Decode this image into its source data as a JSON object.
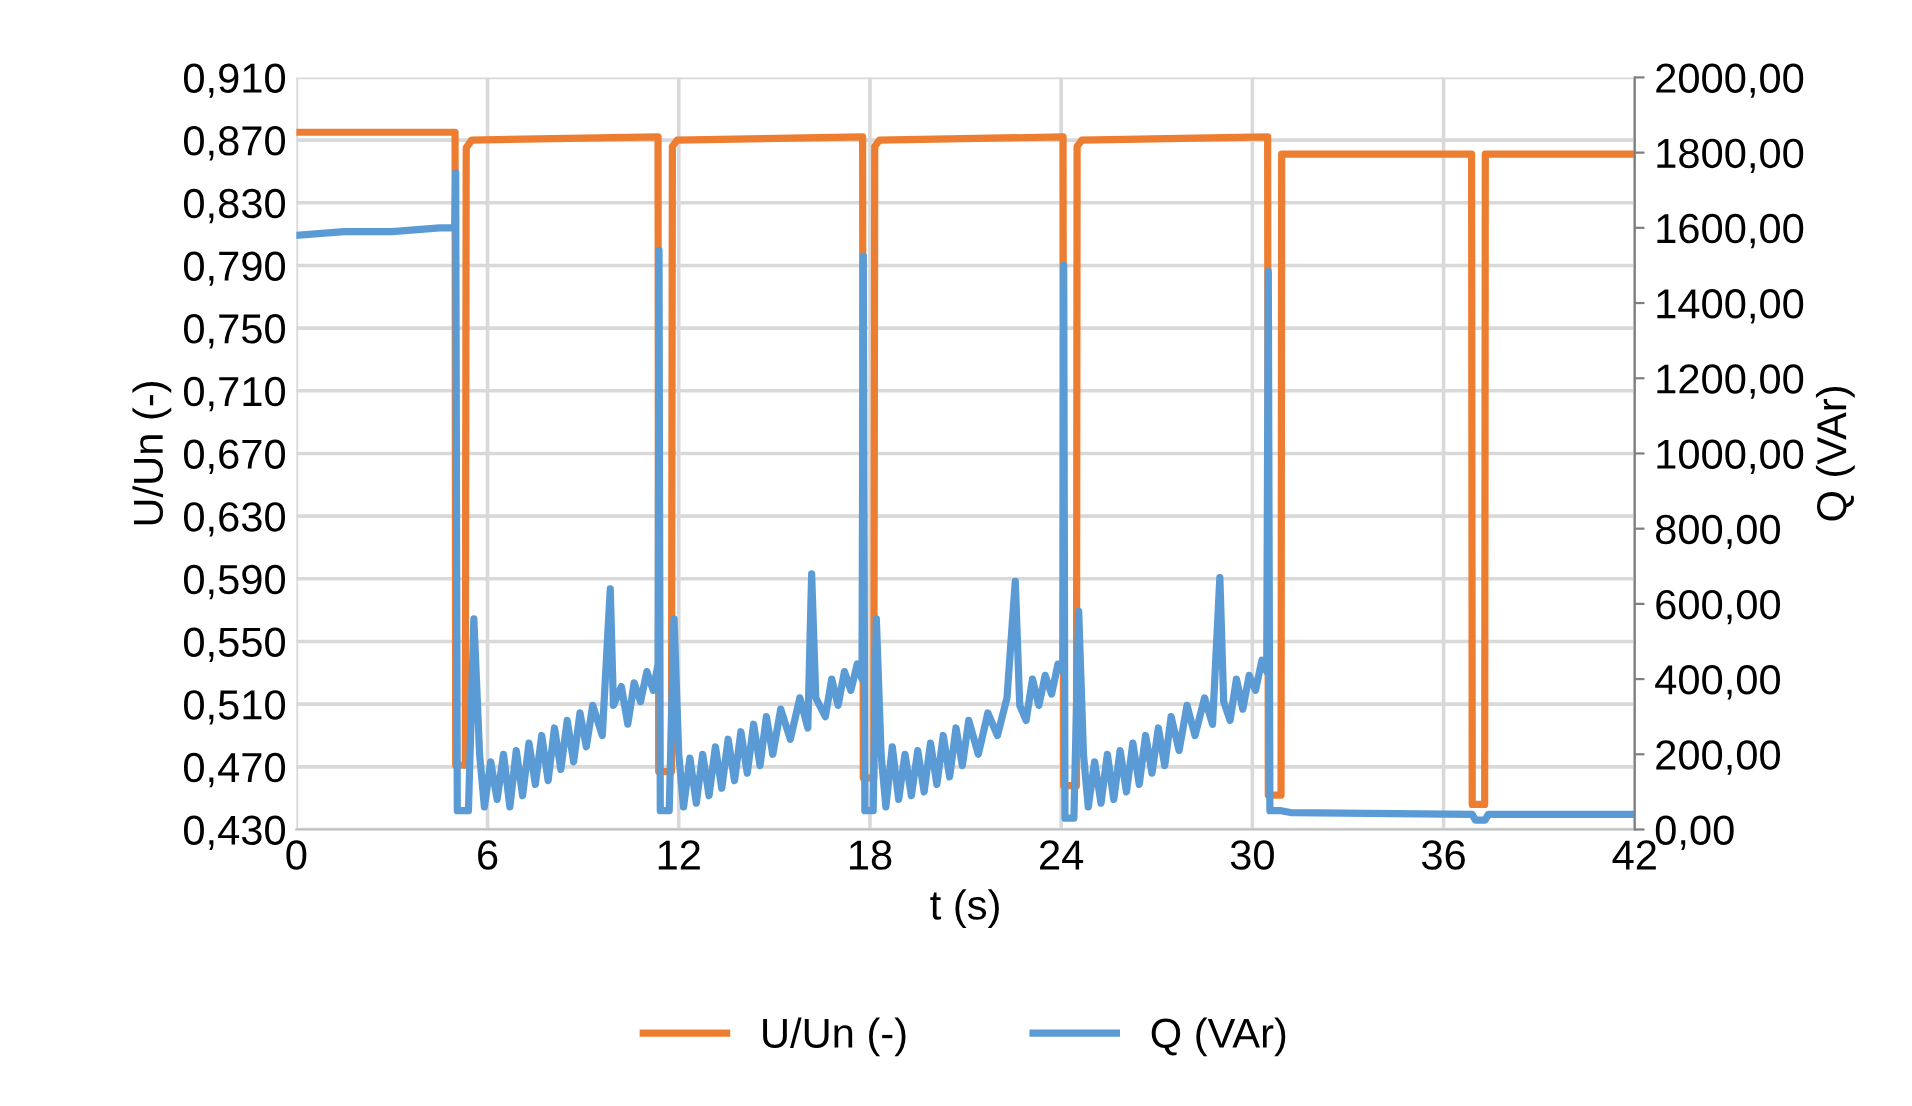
{
  "chart_data": {
    "type": "line",
    "xlabel": "t (s)",
    "ylabel": "U/Un (-)",
    "y2label": "Q (VAr)",
    "xlim": [
      0,
      42
    ],
    "xticks": [
      0,
      6,
      12,
      18,
      24,
      30,
      36,
      42
    ],
    "ylim": [
      0.43,
      0.91
    ],
    "yticks": [
      {
        "value": 0.43,
        "label": "0,430"
      },
      {
        "value": 0.47,
        "label": "0,470"
      },
      {
        "value": 0.51,
        "label": "0,510"
      },
      {
        "value": 0.55,
        "label": "0,550"
      },
      {
        "value": 0.59,
        "label": "0,590"
      },
      {
        "value": 0.63,
        "label": "0,630"
      },
      {
        "value": 0.67,
        "label": "0,670"
      },
      {
        "value": 0.71,
        "label": "0,710"
      },
      {
        "value": 0.75,
        "label": "0,750"
      },
      {
        "value": 0.79,
        "label": "0,790"
      },
      {
        "value": 0.83,
        "label": "0,830"
      },
      {
        "value": 0.87,
        "label": "0,870"
      },
      {
        "value": 0.91,
        "label": "0,910"
      }
    ],
    "y2lim": [
      0,
      2000
    ],
    "y2ticks": [
      {
        "value": 0,
        "label": "0,00"
      },
      {
        "value": 200,
        "label": "200,00"
      },
      {
        "value": 400,
        "label": "400,00"
      },
      {
        "value": 600,
        "label": "600,00"
      },
      {
        "value": 800,
        "label": "800,00"
      },
      {
        "value": 1000,
        "label": "1000,00"
      },
      {
        "value": 1200,
        "label": "1200,00"
      },
      {
        "value": 1400,
        "label": "1400,00"
      },
      {
        "value": 1600,
        "label": "1600,00"
      },
      {
        "value": 1800,
        "label": "1800,00"
      },
      {
        "value": 2000,
        "label": "2000,00"
      }
    ],
    "grid": true,
    "legend": "bottom",
    "marker": "none",
    "line_style": "solid",
    "series": [
      {
        "name": "U/Un (-)",
        "color": "#ed7d31",
        "x": [
          0,
          4.98,
          5.0,
          5.3,
          5.33,
          5.5,
          11.35,
          11.37,
          11.77,
          11.8,
          11.95,
          17.77,
          17.79,
          18.12,
          18.15,
          18.3,
          24.06,
          24.08,
          24.48,
          24.5,
          24.65,
          30.48,
          30.5,
          30.9,
          30.92,
          36.88,
          36.9,
          37.29,
          37.31,
          42
        ],
        "values": [
          0.875,
          0.875,
          0.471,
          0.471,
          0.865,
          0.87,
          0.872,
          0.467,
          0.467,
          0.866,
          0.87,
          0.872,
          0.463,
          0.463,
          0.866,
          0.87,
          0.872,
          0.458,
          0.458,
          0.866,
          0.87,
          0.872,
          0.452,
          0.452,
          0.861,
          0.861,
          0.446,
          0.446,
          0.861,
          0.861
        ]
      },
      {
        "name": "Q (VAr)",
        "color": "#5b9bd5",
        "axis": "y2",
        "x": [
          0,
          1.5,
          3.0,
          4.5,
          4.97,
          5.0,
          5.05,
          5.4,
          5.57,
          5.75,
          5.9,
          6.1,
          6.3,
          6.5,
          6.7,
          6.9,
          7.1,
          7.3,
          7.5,
          7.7,
          7.9,
          8.1,
          8.3,
          8.5,
          8.7,
          8.9,
          9.1,
          9.3,
          9.6,
          9.85,
          9.95,
          10.2,
          10.4,
          10.6,
          10.8,
          11.0,
          11.2,
          11.35,
          11.38,
          11.42,
          11.7,
          11.85,
          12.0,
          12.15,
          12.35,
          12.55,
          12.75,
          12.95,
          13.15,
          13.35,
          13.55,
          13.75,
          13.95,
          14.15,
          14.35,
          14.55,
          14.75,
          14.95,
          15.2,
          15.5,
          15.8,
          16.05,
          16.17,
          16.3,
          16.6,
          16.8,
          17.0,
          17.2,
          17.4,
          17.6,
          17.75,
          17.79,
          17.84,
          18.1,
          18.2,
          18.35,
          18.5,
          18.7,
          18.9,
          19.1,
          19.3,
          19.5,
          19.7,
          19.9,
          20.1,
          20.3,
          20.5,
          20.7,
          20.9,
          21.1,
          21.4,
          21.7,
          22.0,
          22.3,
          22.56,
          22.7,
          22.9,
          23.1,
          23.3,
          23.5,
          23.7,
          23.9,
          24.05,
          24.08,
          24.12,
          24.4,
          24.55,
          24.7,
          24.85,
          25.05,
          25.25,
          25.45,
          25.65,
          25.85,
          26.05,
          26.25,
          26.45,
          26.65,
          26.85,
          27.05,
          27.25,
          27.45,
          27.7,
          27.95,
          28.2,
          28.5,
          28.75,
          28.98,
          29.1,
          29.3,
          29.5,
          29.7,
          29.9,
          30.1,
          30.3,
          30.45,
          30.5,
          30.55,
          30.9,
          31.2,
          36.9,
          37.0,
          37.3,
          37.4,
          42
        ],
        "values": [
          1580,
          1590,
          1590,
          1600,
          1600,
          1747,
          50,
          50,
          560,
          200,
          60,
          180,
          80,
          200,
          60,
          210,
          90,
          230,
          120,
          250,
          130,
          270,
          160,
          290,
          180,
          310,
          220,
          330,
          250,
          640,
          330,
          380,
          280,
          390,
          340,
          420,
          370,
          440,
          1540,
          50,
          50,
          560,
          200,
          60,
          190,
          70,
          200,
          90,
          220,
          110,
          240,
          130,
          260,
          150,
          280,
          170,
          300,
          200,
          320,
          240,
          350,
          270,
          680,
          350,
          300,
          400,
          330,
          420,
          370,
          440,
          400,
          1525,
          50,
          50,
          560,
          200,
          60,
          220,
          80,
          200,
          90,
          210,
          100,
          230,
          120,
          250,
          140,
          270,
          170,
          290,
          200,
          310,
          250,
          350,
          660,
          330,
          290,
          400,
          330,
          410,
          360,
          440,
          420,
          1500,
          30,
          30,
          580,
          200,
          60,
          180,
          70,
          200,
          80,
          210,
          100,
          230,
          120,
          250,
          150,
          270,
          170,
          300,
          210,
          330,
          250,
          350,
          280,
          670,
          340,
          290,
          400,
          320,
          410,
          370,
          450,
          420,
          1484,
          50,
          50,
          45,
          40,
          25,
          25,
          40,
          40
        ]
      }
    ]
  }
}
